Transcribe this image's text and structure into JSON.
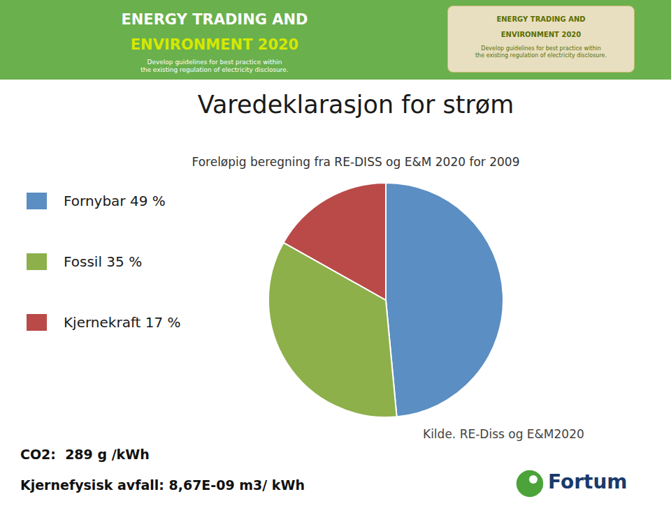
{
  "chart_data": {
    "type": "pie",
    "title": "Varedeklarasjon for strøm",
    "subtitle": "Foreløpig beregning fra RE-DISS  og E&M 2020 for 2009",
    "categories": [
      "Fornybar 49 %",
      "Fossil 35 %",
      "Kjernekraft 17 %"
    ],
    "values": [
      49,
      35,
      17
    ],
    "colors": [
      "#5b8ec2",
      "#8db04a",
      "#b94a48"
    ],
    "legend": "left",
    "annotations": [
      "ENERGY TRADING AND",
      "ENVIRONMENT 2020",
      "Develop guidelines for best practice within\nthe existing regulation of electricity disclosure.",
      "ENERGY TRADING AND",
      "ENVIRONMENT 2020",
      "Develop guidelines for best practice within\nthe existing regulation of electricity disclosure.",
      "CO2:  289 g /kWh",
      "Kjernefysisk avfall: 8,67E-09 m3/ kWh",
      "Kilde. RE-Diss og E&M2020",
      "Fortum"
    ]
  }
}
